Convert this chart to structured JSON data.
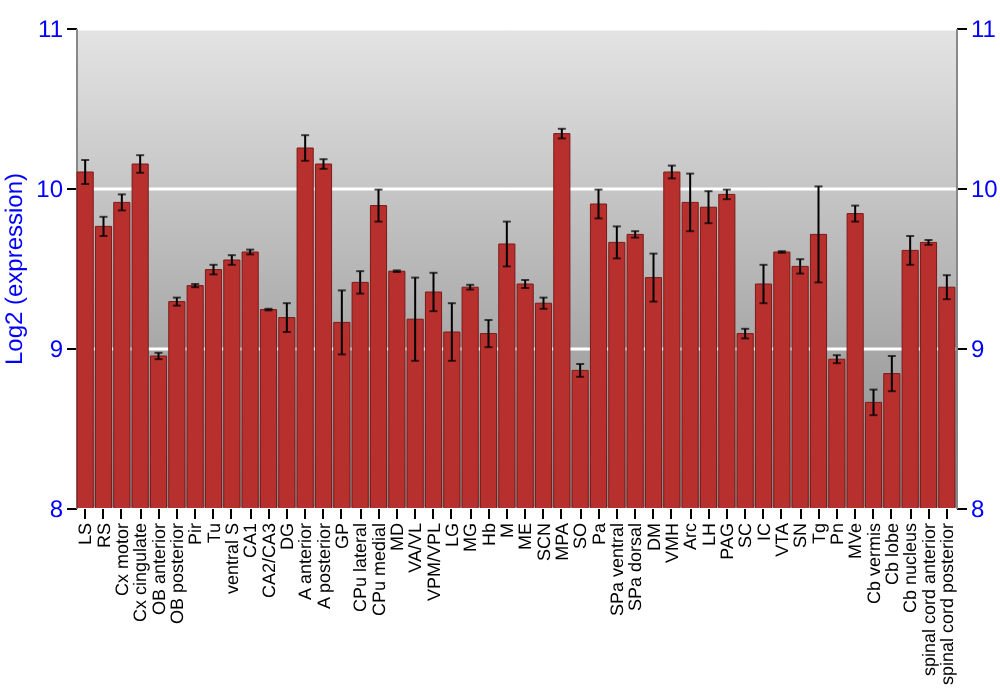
{
  "chart_data": {
    "type": "bar",
    "ylabel": "Log2 (expression)",
    "categories": [
      "LS",
      "RS",
      "Cx motor",
      "Cx cingulate",
      "OB anterior",
      "OB posterior",
      "Pir",
      "Tu",
      "ventral S",
      "CA1",
      "CA2/CA3",
      "DG",
      "A anterior",
      "A posterior",
      "GP",
      "CPu lateral",
      "CPu medial",
      "MD",
      "VA/VL",
      "VPM/VPL",
      "LG",
      "MG",
      "Hb",
      "M",
      "ME",
      "SCN",
      "MPA",
      "SO",
      "Pa",
      "SPa ventral",
      "SPa dorsal",
      "DM",
      "VMH",
      "Arc",
      "LH",
      "PAG",
      "SC",
      "IC",
      "VTA",
      "SN",
      "Tg",
      "Pn",
      "MVe",
      "Cb vermis",
      "Cb lobe",
      "Cb nucleus",
      "spinal cord anterior",
      "spinal cord posterior"
    ],
    "series": [
      {
        "color": "#b8302e",
        "values": [
          10.1,
          9.76,
          9.91,
          10.15,
          8.95,
          9.29,
          9.39,
          9.49,
          9.55,
          9.6,
          9.24,
          9.19,
          10.25,
          10.15,
          9.16,
          9.41,
          9.89,
          9.48,
          9.18,
          9.35,
          9.1,
          9.38,
          9.09,
          9.65,
          9.4,
          9.28,
          10.34,
          8.86,
          9.9,
          9.66,
          9.71,
          9.44,
          10.1,
          9.91,
          9.88,
          9.96,
          9.09,
          9.4,
          9.6,
          9.51,
          9.71,
          8.93,
          9.84,
          8.66,
          8.84,
          9.61,
          9.66,
          9.38
        ],
        "errors": [
          0.075,
          0.06,
          0.05,
          0.055,
          0.02,
          0.025,
          0.01,
          0.03,
          0.03,
          0.015,
          0.005,
          0.09,
          0.08,
          0.03,
          0.2,
          0.07,
          0.1,
          0.005,
          0.26,
          0.12,
          0.18,
          0.015,
          0.085,
          0.14,
          0.025,
          0.035,
          0.03,
          0.04,
          0.09,
          0.1,
          0.02,
          0.15,
          0.04,
          0.18,
          0.1,
          0.03,
          0.03,
          0.12,
          0.005,
          0.045,
          0.3,
          0.025,
          0.05,
          0.08,
          0.11,
          0.09,
          0.015,
          0.075
        ]
      }
    ],
    "ylim": [
      8,
      11
    ],
    "yticks": [
      8,
      9,
      10,
      11
    ],
    "y2lim": [
      8,
      11
    ],
    "y2ticks": [
      8,
      9,
      10,
      11
    ],
    "grid": "y"
  }
}
